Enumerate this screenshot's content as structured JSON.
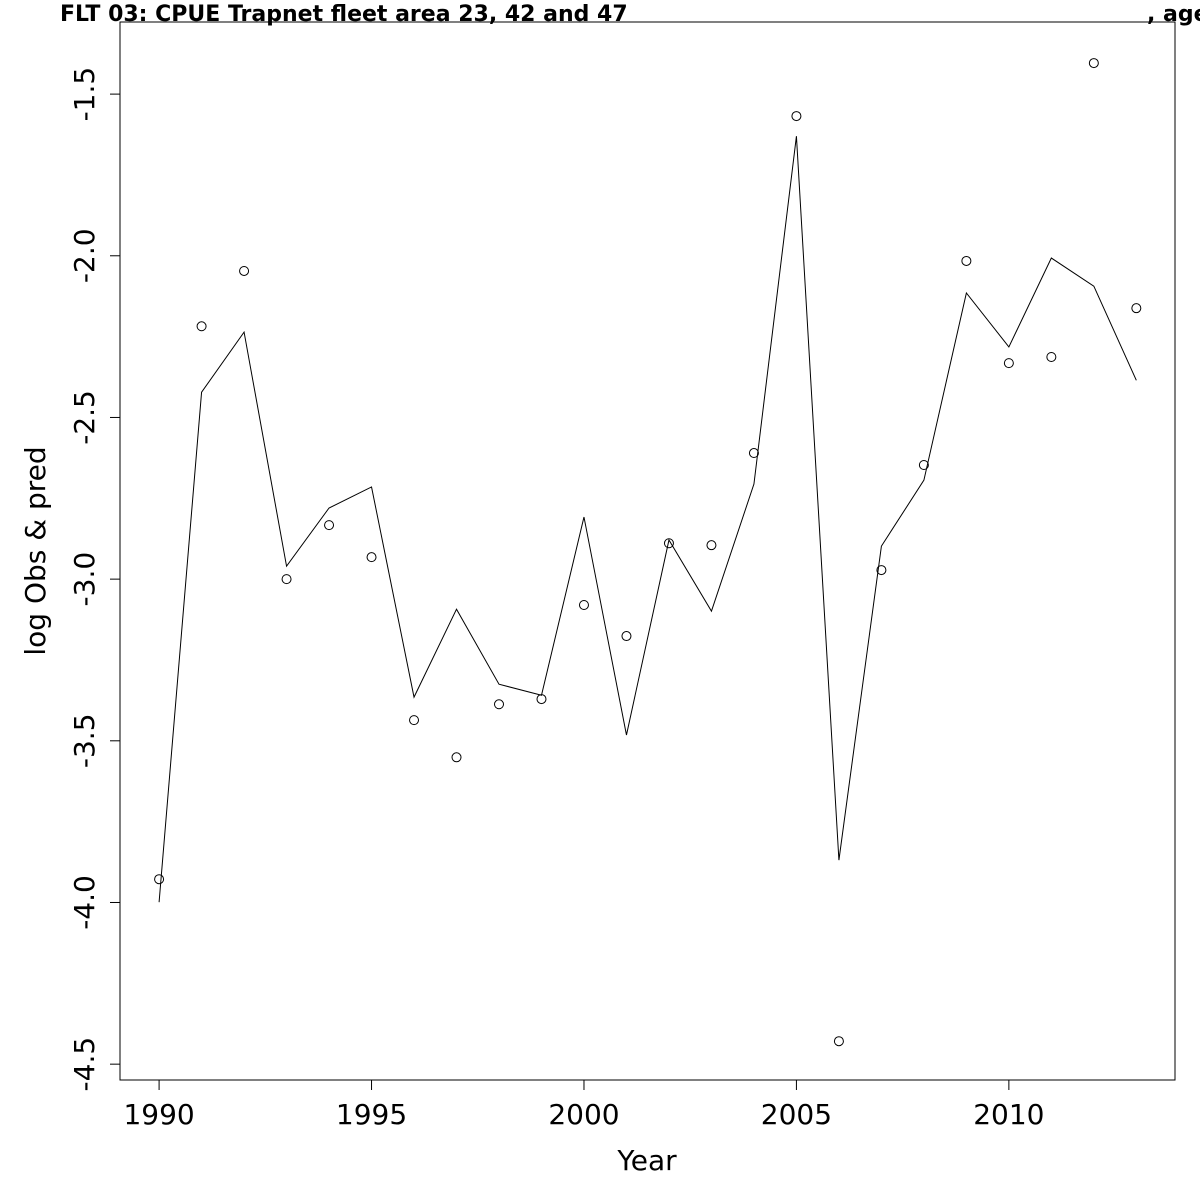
{
  "chart_data": {
    "type": "line",
    "title": "FLT 03: CPUE Trapnet fleet area 23, 42 and 47",
    "title_suffix": ", age",
    "x_label": "Year",
    "y_label": "log Obs & pred",
    "x": [
      1990,
      1991,
      1992,
      1993,
      1994,
      1995,
      1996,
      1997,
      1998,
      1999,
      2000,
      2001,
      2002,
      2003,
      2004,
      2005,
      2006,
      2007,
      2008,
      2009,
      2010,
      2011,
      2012,
      2013
    ],
    "series": [
      {
        "style": "points",
        "color": "#000000",
        "values": [
          -3.928,
          -2.218,
          -2.047,
          -3.0,
          -2.833,
          -2.932,
          -3.436,
          -3.551,
          -3.387,
          -3.371,
          -3.08,
          -3.176,
          -2.889,
          -2.895,
          -2.61,
          -1.568,
          -4.429,
          -2.972,
          -2.647,
          -2.016,
          -2.332,
          -2.313,
          -1.404,
          -2.162
        ]
      },
      {
        "style": "line",
        "color": "#000000",
        "values": [
          -3.999,
          -2.422,
          -2.236,
          -2.96,
          -2.78,
          -2.715,
          -3.365,
          -3.093,
          -3.325,
          -3.359,
          -2.808,
          -3.482,
          -2.879,
          -3.099,
          -2.706,
          -1.63,
          -3.869,
          -2.898,
          -2.694,
          -2.115,
          -2.282,
          -2.007,
          -2.094,
          -2.385
        ]
      }
    ],
    "xlim": [
      1989.08,
      2013.91
    ],
    "ylim": [
      -4.549,
      -1.277
    ],
    "xticks": [
      1990,
      1995,
      2000,
      2005,
      2010
    ],
    "yticks": [
      -1.5,
      {
        "value": -2,
        "label": "-2.0"
      },
      -2.5,
      {
        "value": -3,
        "label": "-3.0"
      },
      -3.5,
      {
        "value": -4,
        "label": "-4.0"
      },
      -4.5
    ]
  }
}
